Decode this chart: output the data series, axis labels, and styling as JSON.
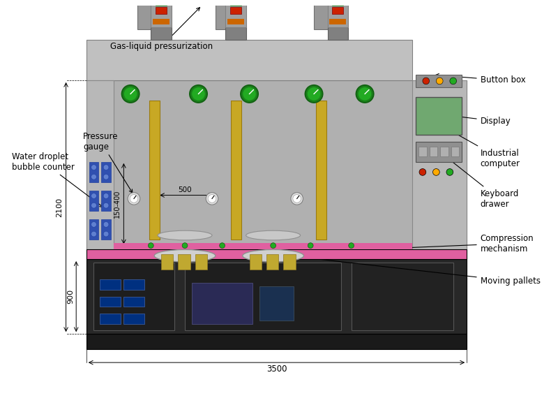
{
  "fig_width": 8.0,
  "fig_height": 6.0,
  "bg_color": "#ffffff",
  "labels": {
    "gas_liquid": "Gas-liquid pressurization",
    "tricolor": "Tricolor lamp",
    "water_droplet": "Water droplet\nbubble counter",
    "pressure_gauge": "Pressure\ngauge",
    "button_box": "Button box",
    "display": "Display",
    "industrial_computer": "Industrial\ncomputer",
    "keyboard_drawer": "Keyboard\ndrawer",
    "compression": "Compression\nmechanism",
    "moving_pallets": "Moving pallets"
  },
  "dim_labels": {
    "width_3500": "3500",
    "height_2100": "2100",
    "height_900": "900",
    "height_150_400": "150-400",
    "width_500": "500"
  },
  "colors": {
    "machine_body": "#c8c8c8",
    "machine_dark": "#888888",
    "machine_frame": "#d0d0d0",
    "column_gold": "#b8a020",
    "base_black": "#1a1a1a",
    "base_dark": "#2a2a2a",
    "pink_conveyor": "#e060a0",
    "green_circle": "#1a8a1a",
    "display_green": "#60b060",
    "display_gray": "#708090",
    "tricolor_red": "#cc2200",
    "tricolor_green": "#22aa22",
    "tricolor_orange": "#cc6600",
    "left_panel_blue": "#4060c0",
    "annotation_line": "#000000",
    "dim_line": "#000000"
  }
}
